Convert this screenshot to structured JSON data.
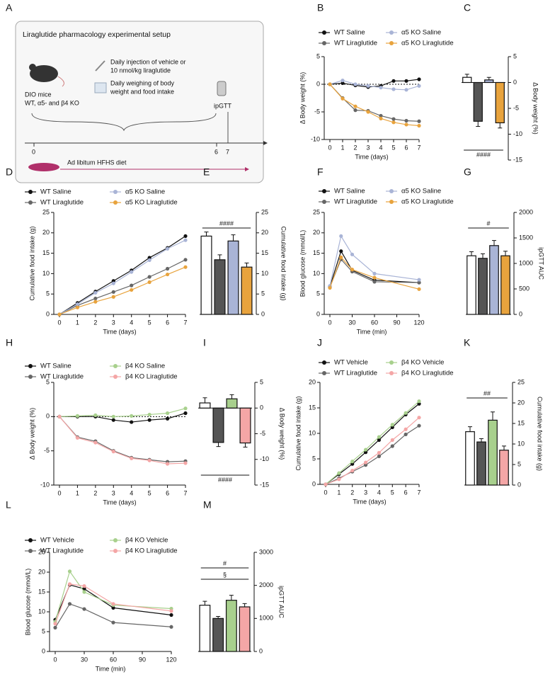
{
  "diagram": {
    "panel": "A",
    "title": "Liraglutide pharmacology experimental setup",
    "mice": "DIO mice",
    "genotypes": "WT, α5- and β4 KO",
    "injection_1": "Daily injection of vehicle or",
    "injection_2": "10 nmol/kg liraglutide",
    "weighing_1": "Daily weighing of body",
    "weighing_2": "weight and food intake",
    "test": "ipGTT",
    "day_start": "0",
    "day_end": "6",
    "day_test": "7",
    "diet": "Ad libitum HFHS diet"
  },
  "chart_data": [
    {
      "type": "line",
      "panel": "B",
      "x_label": "Time (days)",
      "y_label": "Δ Body weight (%)",
      "x": [
        0,
        1,
        2,
        3,
        4,
        5,
        6,
        7
      ],
      "xlim": [
        0,
        7
      ],
      "xticks": [
        0,
        1,
        2,
        3,
        4,
        5,
        6,
        7
      ],
      "ylim": [
        -10,
        5
      ],
      "yticks": [
        -10,
        -5,
        0,
        5
      ],
      "zero_line": true,
      "series": [
        {
          "name": "WT Saline",
          "color": "#111111",
          "values": [
            0,
            0.2,
            -0.2,
            -0.5,
            -0.3,
            0.6,
            0.6,
            0.9
          ]
        },
        {
          "name": "WT Liraglutide",
          "color": "#666666",
          "values": [
            0,
            -2.5,
            -4.7,
            -4.8,
            -5.7,
            -6.3,
            -6.6,
            -6.7
          ]
        },
        {
          "name": "α5 KO Saline",
          "color": "#a9b4d6",
          "values": [
            0,
            0.7,
            0,
            -0.3,
            -0.6,
            -0.9,
            -1,
            -0.3
          ]
        },
        {
          "name": "α5 KO Liraglutide",
          "color": "#e8a33d",
          "values": [
            0,
            -2.6,
            -4,
            -5,
            -6.2,
            -6.9,
            -7.3,
            -7.5
          ]
        }
      ]
    },
    {
      "type": "bar",
      "panel": "C",
      "y_label": "Δ Body weight (%)",
      "ylim": [
        -15,
        5
      ],
      "yticks": [
        -15,
        -10,
        -5,
        0,
        5
      ],
      "values": [
        1,
        -7.5,
        0.5,
        -7.8
      ],
      "errors": [
        0.6,
        1,
        0.5,
        1
      ],
      "colors": [
        "#ffffff",
        "#555555",
        "#a9b4d6",
        "#e8a33d"
      ],
      "annotations": [
        "####"
      ],
      "annotation_position": "bottom"
    },
    {
      "type": "line",
      "panel": "D",
      "x_label": "Time (days)",
      "y_label": "Cumulative food intake (g)",
      "x": [
        0,
        1,
        2,
        3,
        4,
        5,
        6,
        7
      ],
      "xlim": [
        0,
        7
      ],
      "xticks": [
        0,
        1,
        2,
        3,
        4,
        5,
        6,
        7
      ],
      "ylim": [
        0,
        25
      ],
      "yticks": [
        0,
        5,
        10,
        15,
        20,
        25
      ],
      "zero_line": false,
      "series": [
        {
          "name": "WT Saline",
          "color": "#111111",
          "values": [
            0,
            2.8,
            5.6,
            8.2,
            10.8,
            13.9,
            16.3,
            19.2
          ]
        },
        {
          "name": "WT Liraglutide",
          "color": "#666666",
          "values": [
            0,
            2.2,
            3.9,
            5.5,
            7.1,
            9.2,
            11.2,
            13.4
          ]
        },
        {
          "name": "α5 KO Saline",
          "color": "#a9b4d6",
          "values": [
            0,
            2.5,
            5.3,
            7.6,
            10.4,
            13.3,
            16.1,
            18.2
          ]
        },
        {
          "name": "α5 KO Liraglutide",
          "color": "#e8a33d",
          "values": [
            0,
            1.7,
            3.1,
            4.3,
            6,
            7.9,
            9.8,
            11.6
          ]
        }
      ]
    },
    {
      "type": "bar",
      "panel": "E",
      "y_label": "Cumulative food intake (g)",
      "ylim": [
        0,
        25
      ],
      "yticks": [
        0,
        5,
        10,
        15,
        20,
        25
      ],
      "values": [
        19.2,
        13.4,
        18,
        11.6
      ],
      "errors": [
        1,
        1.2,
        1.5,
        1
      ],
      "colors": [
        "#ffffff",
        "#555555",
        "#a9b4d6",
        "#e8a33d"
      ],
      "annotations": [
        "####"
      ],
      "annotation_position": "top"
    },
    {
      "type": "line",
      "panel": "F",
      "x_label": "Time (min)",
      "y_label": "Blood glucose (mmol/L)",
      "x": [
        0,
        15,
        30,
        60,
        120
      ],
      "xlim": [
        0,
        120
      ],
      "xticks": [
        0,
        30,
        60,
        90,
        120
      ],
      "ylim": [
        0,
        25
      ],
      "yticks": [
        0,
        5,
        10,
        15,
        20,
        25
      ],
      "zero_line": false,
      "series": [
        {
          "name": "WT Saline",
          "color": "#111111",
          "values": [
            6.8,
            15.5,
            10.8,
            8.4,
            7.8
          ]
        },
        {
          "name": "WT Liraglutide",
          "color": "#666666",
          "values": [
            6.7,
            13.5,
            10.5,
            8,
            7.8
          ]
        },
        {
          "name": "α5 KO Saline",
          "color": "#a9b4d6",
          "values": [
            7,
            19.2,
            14.7,
            10,
            8.5
          ]
        },
        {
          "name": "α5 KO Liraglutide",
          "color": "#e8a33d",
          "values": [
            6.5,
            14,
            11,
            9,
            6.2
          ]
        }
      ]
    },
    {
      "type": "bar",
      "panel": "G",
      "y_label": "ipGTT AUC",
      "ylim": [
        0,
        2000
      ],
      "yticks": [
        0,
        500,
        1000,
        1500,
        2000
      ],
      "values": [
        1150,
        1100,
        1350,
        1150
      ],
      "errors": [
        80,
        90,
        100,
        90
      ],
      "colors": [
        "#ffffff",
        "#555555",
        "#a9b4d6",
        "#e8a33d"
      ],
      "annotations": [
        "#"
      ],
      "annotation_position": "top"
    },
    {
      "type": "line",
      "panel": "H",
      "x_label": "Time (days)",
      "y_label": "Δ Body weight (%)",
      "x": [
        0,
        1,
        2,
        3,
        4,
        5,
        6,
        7
      ],
      "xlim": [
        0,
        7
      ],
      "xticks": [
        0,
        1,
        2,
        3,
        4,
        5,
        6,
        7
      ],
      "ylim": [
        -10,
        5
      ],
      "yticks": [
        -10,
        -5,
        0,
        5
      ],
      "zero_line": true,
      "series": [
        {
          "name": "WT Saline",
          "color": "#111111",
          "values": [
            0,
            0,
            0,
            -0.5,
            -0.8,
            -0.5,
            -0.3,
            0.5
          ]
        },
        {
          "name": "WT Liraglutide",
          "color": "#666666",
          "values": [
            0,
            -3,
            -3.6,
            -5,
            -6,
            -6.3,
            -6.6,
            -6.5
          ]
        },
        {
          "name": "β4 KO Saline",
          "color": "#a8d08d",
          "values": [
            0,
            0.1,
            0.2,
            0,
            0.1,
            0.3,
            0.5,
            1.2
          ]
        },
        {
          "name": "β4 KO Liraglutide",
          "color": "#f4a6a6",
          "values": [
            0,
            -3.1,
            -3.8,
            -5.1,
            -6.1,
            -6.4,
            -6.9,
            -6.8
          ]
        }
      ]
    },
    {
      "type": "bar",
      "panel": "I",
      "y_label": "Δ Body weight (%)",
      "ylim": [
        -15,
        5
      ],
      "yticks": [
        -15,
        -10,
        -5,
        0,
        5
      ],
      "values": [
        1,
        -6.7,
        1.8,
        -6.8
      ],
      "errors": [
        1,
        0.8,
        0.8,
        0.8
      ],
      "colors": [
        "#ffffff",
        "#555555",
        "#a8d08d",
        "#f4a6a6"
      ],
      "annotations": [
        "####"
      ],
      "annotation_position": "bottom"
    },
    {
      "type": "line",
      "panel": "J",
      "x_label": "Time (days)",
      "y_label": "Cumulative food intake (g)",
      "x": [
        0,
        1,
        2,
        3,
        4,
        5,
        6,
        7
      ],
      "xlim": [
        0,
        7
      ],
      "xticks": [
        0,
        1,
        2,
        3,
        4,
        5,
        6,
        7
      ],
      "ylim": [
        0,
        20
      ],
      "yticks": [
        0,
        5,
        10,
        15,
        20
      ],
      "zero_line": false,
      "series": [
        {
          "name": "WT Vehicle",
          "color": "#111111",
          "values": [
            0,
            2,
            4,
            6.3,
            8.7,
            11.2,
            13.7,
            15.8
          ]
        },
        {
          "name": "WT Liraglutide",
          "color": "#666666",
          "values": [
            0,
            1.2,
            2.5,
            3.8,
            5.5,
            7.5,
            9.8,
            11.5
          ]
        },
        {
          "name": "β4 KO Vehicle",
          "color": "#a8d08d",
          "values": [
            0,
            2.2,
            4.5,
            6.8,
            9.3,
            11.7,
            14,
            16.3
          ]
        },
        {
          "name": "β4 KO Liraglutide",
          "color": "#f4a6a6",
          "values": [
            0,
            1,
            2.7,
            4.3,
            6.2,
            8.7,
            10.8,
            13.1
          ]
        }
      ]
    },
    {
      "type": "bar",
      "panel": "K",
      "y_label": "Cumulative food intake (g)",
      "ylim": [
        0,
        25
      ],
      "yticks": [
        0,
        5,
        10,
        15,
        20,
        25
      ],
      "values": [
        13,
        10.5,
        15.8,
        8.5
      ],
      "errors": [
        1.2,
        0.8,
        2,
        1
      ],
      "colors": [
        "#ffffff",
        "#555555",
        "#a8d08d",
        "#f4a6a6"
      ],
      "annotations": [
        "##"
      ],
      "annotation_position": "top"
    },
    {
      "type": "line",
      "panel": "L",
      "x_label": "Time (min)",
      "y_label": "Blood glucose (mmol/L)",
      "x": [
        0,
        15,
        30,
        60,
        120
      ],
      "xlim": [
        0,
        120
      ],
      "xticks": [
        0,
        30,
        60,
        90,
        120
      ],
      "ylim": [
        0,
        25
      ],
      "yticks": [
        0,
        5,
        10,
        15,
        20,
        25
      ],
      "zero_line": false,
      "series": [
        {
          "name": "WT Vehicle",
          "color": "#111111",
          "values": [
            8,
            16.8,
            15.8,
            11,
            9.2
          ]
        },
        {
          "name": "WT Liraglutide",
          "color": "#666666",
          "values": [
            6,
            12,
            10.7,
            7.3,
            6.2
          ]
        },
        {
          "name": "β4 KO Vehicle",
          "color": "#a8d08d",
          "values": [
            7.5,
            20.2,
            15,
            11.7,
            10.8
          ]
        },
        {
          "name": "β4 KO Liraglutide",
          "color": "#f4a6a6",
          "values": [
            7,
            17,
            16.5,
            12,
            10.2
          ]
        }
      ]
    },
    {
      "type": "bar",
      "panel": "M",
      "y_label": "ipGTT AUC",
      "ylim": [
        0,
        3000
      ],
      "yticks": [
        0,
        1000,
        2000,
        3000
      ],
      "values": [
        1400,
        1000,
        1550,
        1350
      ],
      "errors": [
        120,
        60,
        150,
        100
      ],
      "colors": [
        "#ffffff",
        "#555555",
        "#a8d08d",
        "#f4a6a6"
      ],
      "annotations": [
        "#",
        "§"
      ],
      "annotation_position": "top"
    }
  ]
}
